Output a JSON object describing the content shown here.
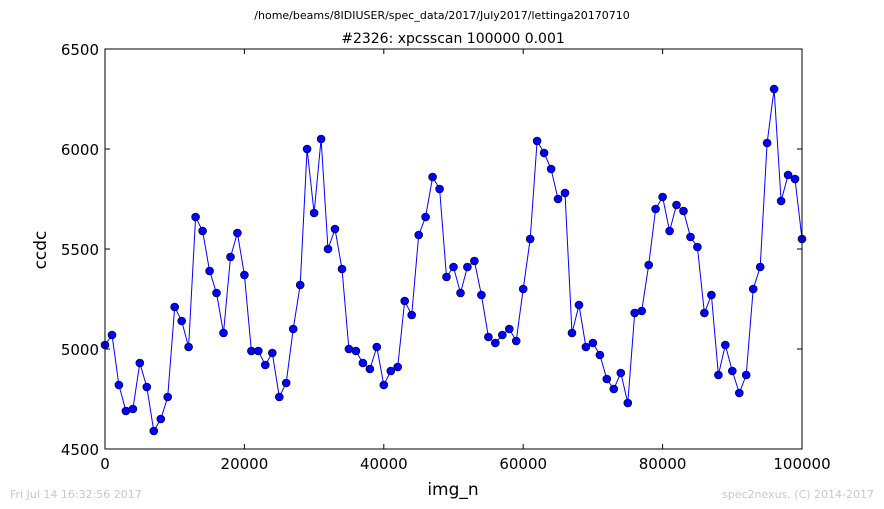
{
  "page": {
    "suptitle": "/home/beams/8IDIUSER/spec_data/2017/July2017/lettinga20170710",
    "footer_left": "Fri Jul 14 16:32:56 2017",
    "footer_right": "spec2nexus, (C) 2014-2017"
  },
  "chart_data": {
    "type": "line",
    "title": "#2326: xpcsscan 100000 0.001",
    "xlabel": "img_n",
    "ylabel": "ccdc",
    "xlim": [
      0,
      100000
    ],
    "ylim": [
      4500,
      6500
    ],
    "xticks": [
      0,
      20000,
      40000,
      60000,
      80000,
      100000
    ],
    "yticks": [
      4500,
      5000,
      5500,
      6000,
      6500
    ],
    "grid": false,
    "line_color": "#0000ff",
    "marker": "circle",
    "series": [
      {
        "x": [
          0,
          1000,
          2000,
          3000,
          4000,
          5000,
          6000,
          7000,
          8000,
          9000,
          10000,
          11000,
          12000,
          13000,
          14000,
          15000,
          16000,
          17000,
          18000,
          19000,
          20000,
          21000,
          22000,
          23000,
          24000,
          25000,
          26000,
          27000,
          28000,
          29000,
          30000,
          31000,
          32000,
          33000,
          34000,
          35000,
          36000,
          37000,
          38000,
          39000,
          40000,
          41000,
          42000,
          43000,
          44000,
          45000,
          46000,
          47000,
          48000,
          49000,
          50000,
          51000,
          52000,
          53000,
          54000,
          55000,
          56000,
          57000,
          58000,
          59000,
          60000,
          61000,
          62000,
          63000,
          64000,
          65000,
          66000,
          67000,
          68000,
          69000,
          70000,
          71000,
          72000,
          73000,
          74000,
          75000,
          76000,
          77000,
          78000,
          79000,
          80000,
          81000,
          82000,
          83000,
          84000,
          85000,
          86000,
          87000,
          88000,
          89000,
          90000,
          91000,
          92000,
          93000,
          94000,
          95000,
          96000,
          97000,
          98000,
          99000,
          100000
        ],
        "y": [
          5020,
          5070,
          4820,
          4690,
          4700,
          4930,
          4810,
          4590,
          4650,
          4760,
          5210,
          5140,
          5010,
          5660,
          5590,
          5390,
          5280,
          5080,
          5460,
          5580,
          5370,
          4990,
          4990,
          4920,
          4980,
          4760,
          4830,
          5100,
          5320,
          6000,
          5680,
          6050,
          5500,
          5600,
          5400,
          5000,
          4990,
          4930,
          4900,
          5010,
          4820,
          4890,
          4910,
          5240,
          5170,
          5570,
          5660,
          5860,
          5800,
          5360,
          5410,
          5280,
          5410,
          5440,
          5270,
          5060,
          5030,
          5070,
          5100,
          5040,
          5300,
          5550,
          6040,
          5980,
          5900,
          5750,
          5780,
          5080,
          5220,
          5010,
          5030,
          4970,
          4850,
          4800,
          4880,
          4730,
          5180,
          5190,
          5420,
          5700,
          5760,
          5590,
          5720,
          5690,
          5560,
          5510,
          5180,
          5270,
          4870,
          5020,
          4890,
          4780,
          4870,
          5300,
          5410,
          6030,
          6300,
          5740,
          5870,
          5850,
          5550
        ]
      }
    ]
  }
}
